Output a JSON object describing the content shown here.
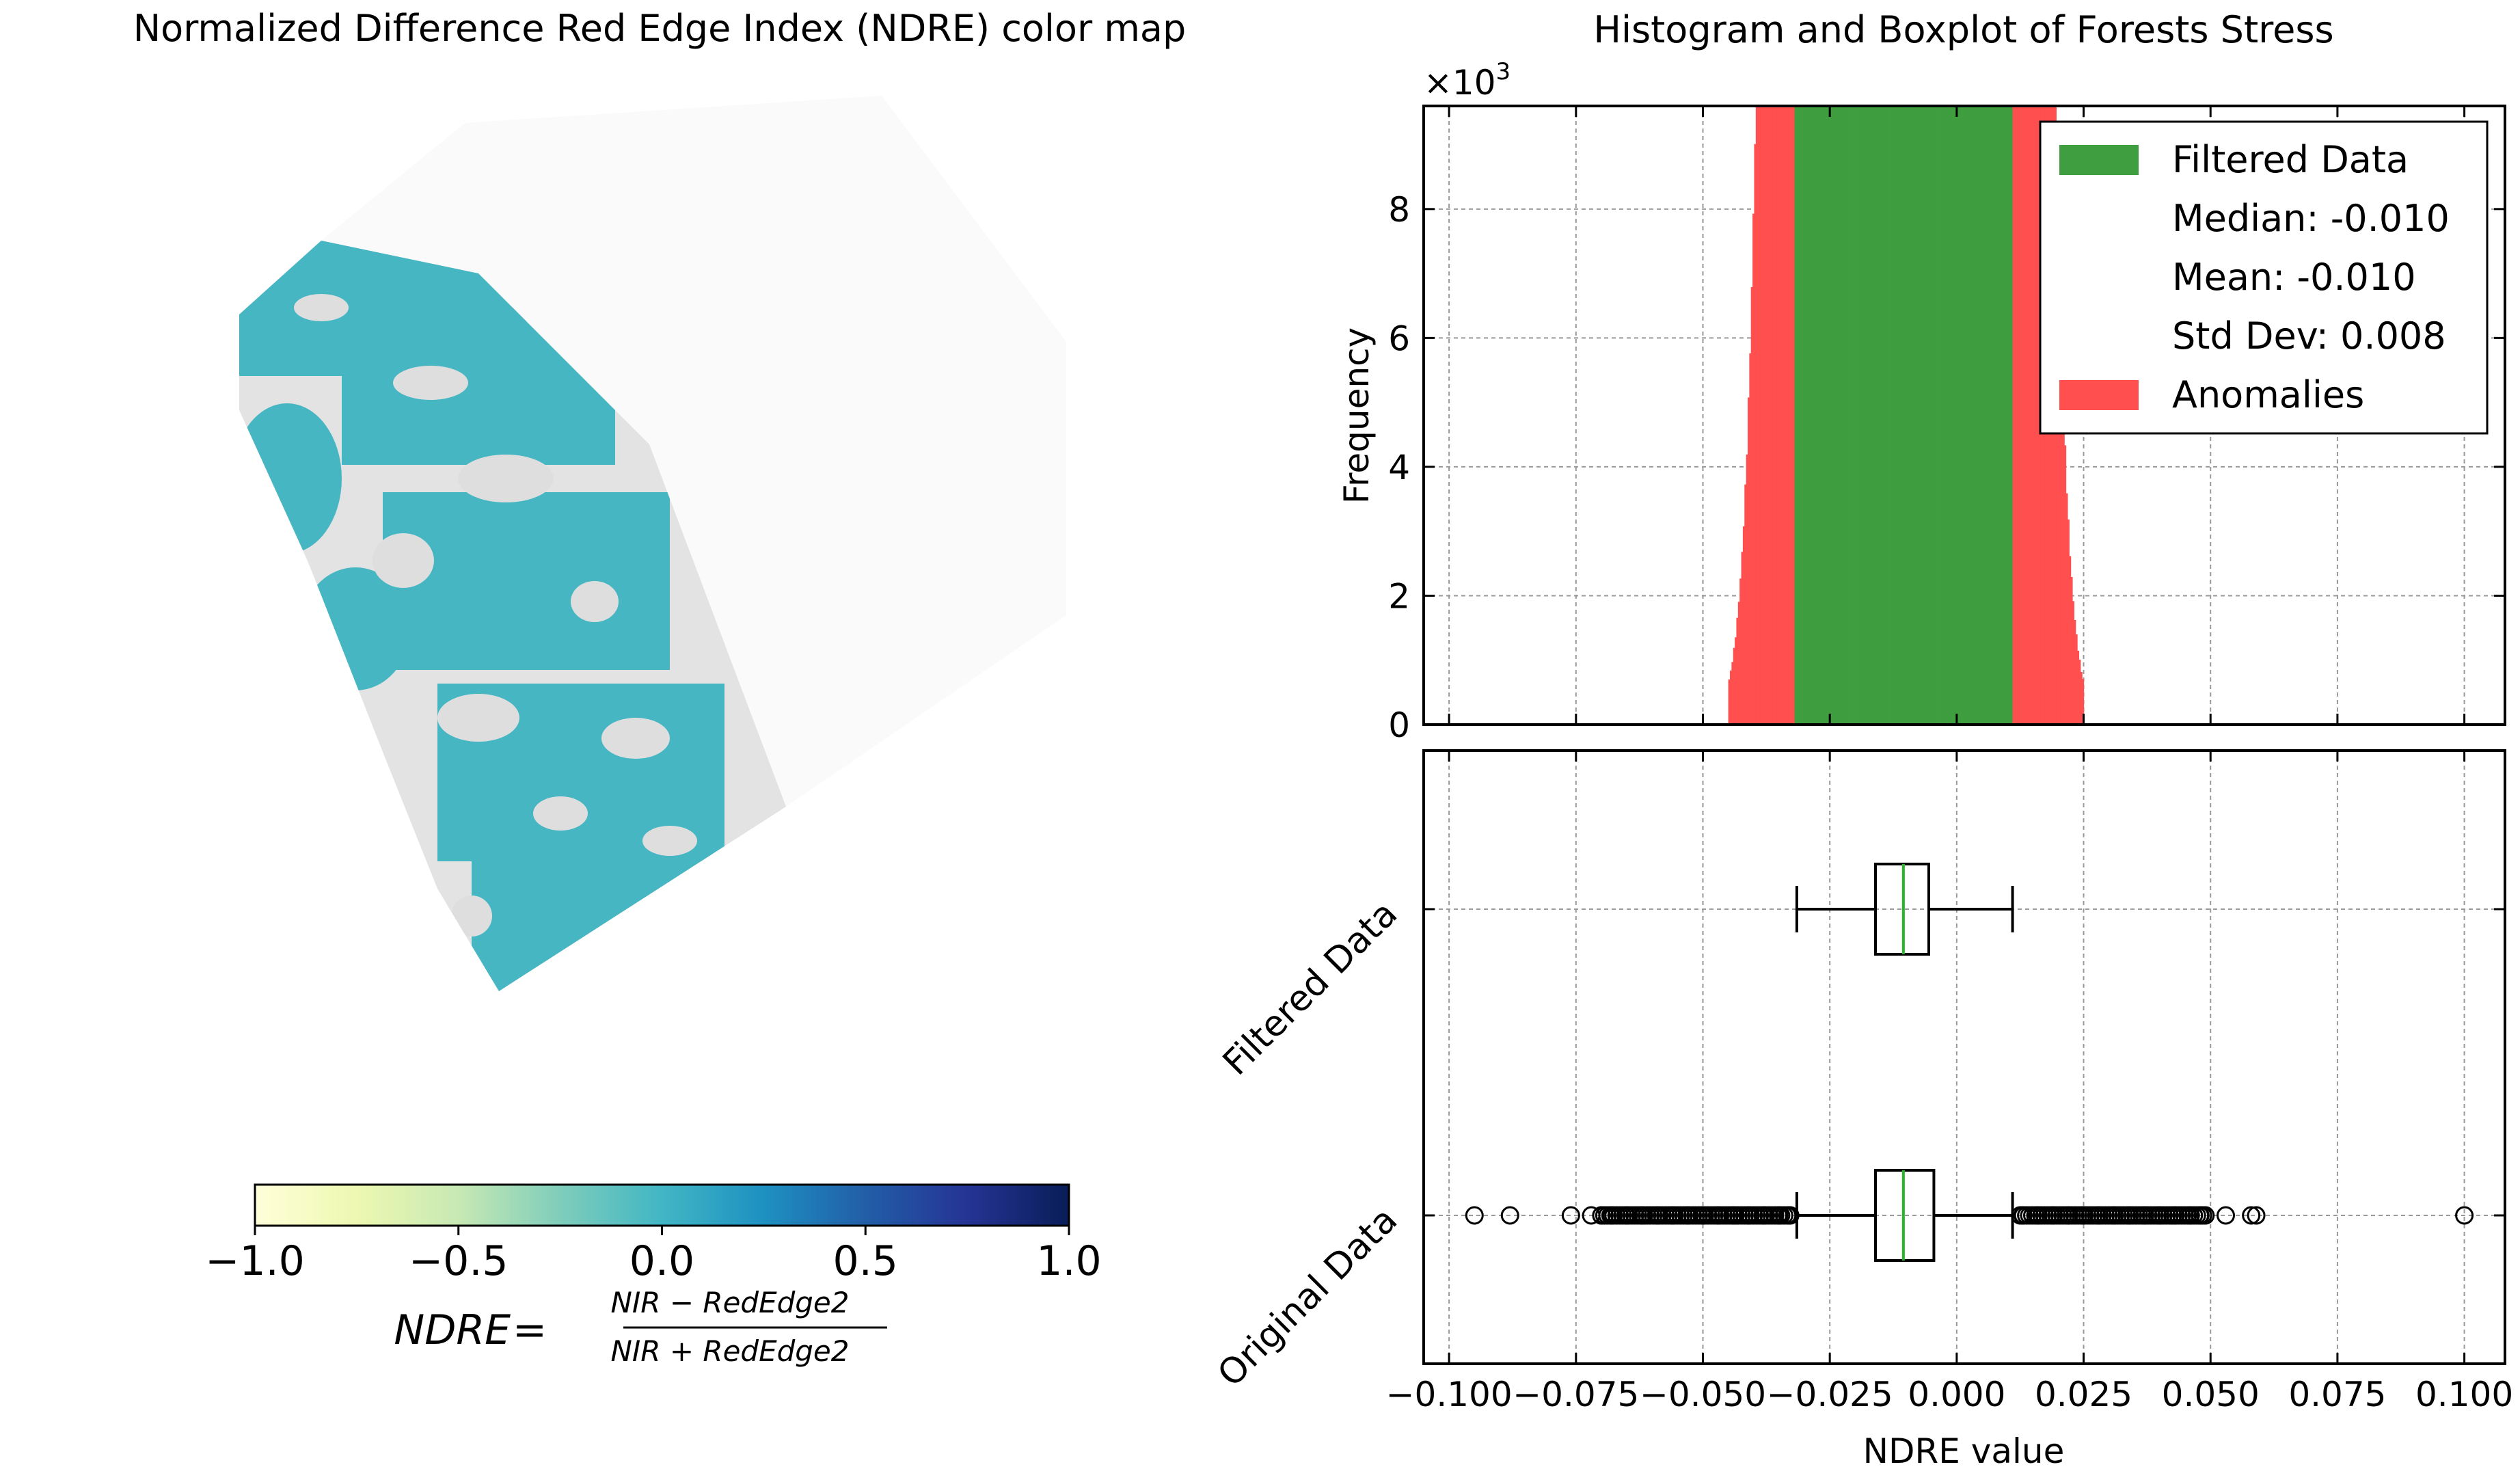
{
  "left_title": "Normalized Difference Red Edge Index (NDRE) color map",
  "colorbar": {
    "ticks": [
      "−1.0",
      "−0.5",
      "0.0",
      "0.5",
      "1.0"
    ],
    "tick_values": [
      -1.0,
      -0.5,
      0.0,
      0.5,
      1.0
    ],
    "range": [
      -1.0,
      1.0
    ],
    "colormap": "YlGnBu",
    "stops": [
      "#ffffd9",
      "#edf8b1",
      "#c7e9b4",
      "#7fcdbb",
      "#41b6c4",
      "#1d91c0",
      "#225ea8",
      "#253494",
      "#081d58"
    ]
  },
  "formula": {
    "lhs": "NDRE",
    "equals": "=",
    "numerator": "NIR − RedEdge2",
    "denominator": "NIR + RedEdge2"
  },
  "map": {
    "field_color": "#47b6c3",
    "background_color": "#e3e3e3"
  },
  "right_title": "Histogram and Boxplot of Forests Stress",
  "hist": {
    "ylabel": "Frequency",
    "multiplier": "×10",
    "multiplier_exp": "3",
    "yticks": [
      "0",
      "2",
      "4",
      "6",
      "8"
    ],
    "ytick_values": [
      0,
      2,
      4,
      6,
      8
    ],
    "ylim": [
      0,
      9.6
    ],
    "xlim": [
      -0.105,
      0.108
    ],
    "grid": true,
    "legend_position": "top-right",
    "legend": {
      "filtered": "Filtered Data",
      "median": "Median: -0.010",
      "mean": "Mean: -0.010",
      "std": "Std Dev: 0.008",
      "anomalies": "Anomalies"
    }
  },
  "box": {
    "xlabel": "NDRE value",
    "categories": [
      "Filtered Data",
      "Original Data"
    ],
    "xticks": [
      "−0.100",
      "−0.075",
      "−0.050",
      "−0.025",
      "0.000",
      "0.025",
      "0.050",
      "0.075",
      "0.100"
    ],
    "xtick_values": [
      -0.1,
      -0.075,
      -0.05,
      -0.025,
      0.0,
      0.025,
      0.05,
      0.075,
      0.1
    ],
    "grid": true
  },
  "colors": {
    "filtered": "#3f9e3f",
    "anomalies": "#ff4f4f",
    "median_line": "#2ab52a"
  },
  "chart_data": [
    {
      "type": "histogram",
      "title": "Histogram and Boxplot of Forests Stress",
      "ylabel": "Frequency",
      "y_unit_multiplier": 1000,
      "ylim": [
        0,
        9600
      ],
      "series": [
        {
          "name": "Filtered Data",
          "color": "#3f9e3f",
          "range": [
            -0.032,
            0.011
          ],
          "peak_x": -0.011,
          "peak_count": 9200
        },
        {
          "name": "Anomalies",
          "color": "#ff4f4f",
          "range": [
            -0.045,
            0.025
          ]
        }
      ],
      "stats": {
        "median": -0.01,
        "mean": -0.01,
        "std": 0.008
      }
    },
    {
      "type": "boxplot",
      "xlabel": "NDRE value",
      "xlim": [
        -0.105,
        0.108
      ],
      "series": [
        {
          "name": "Filtered Data",
          "whisker_low": -0.0315,
          "q1": -0.016,
          "median": -0.0105,
          "q3": -0.0055,
          "whisker_high": 0.011,
          "outliers": []
        },
        {
          "name": "Original Data",
          "whisker_low": -0.0315,
          "q1": -0.016,
          "median": -0.0105,
          "q3": -0.0045,
          "whisker_high": 0.011,
          "outliers": [
            -0.095,
            -0.088,
            -0.076,
            -0.072,
            -0.07,
            -0.068,
            -0.065,
            -0.062,
            -0.059,
            -0.056,
            -0.053,
            -0.05,
            -0.047,
            -0.044,
            -0.041,
            -0.038,
            -0.035,
            -0.033,
            0.013,
            0.016,
            0.019,
            0.022,
            0.025,
            0.028,
            0.031,
            0.034,
            0.037,
            0.04,
            0.043,
            0.046,
            0.048,
            0.049,
            0.053,
            0.058,
            0.059,
            0.1
          ]
        }
      ]
    }
  ]
}
